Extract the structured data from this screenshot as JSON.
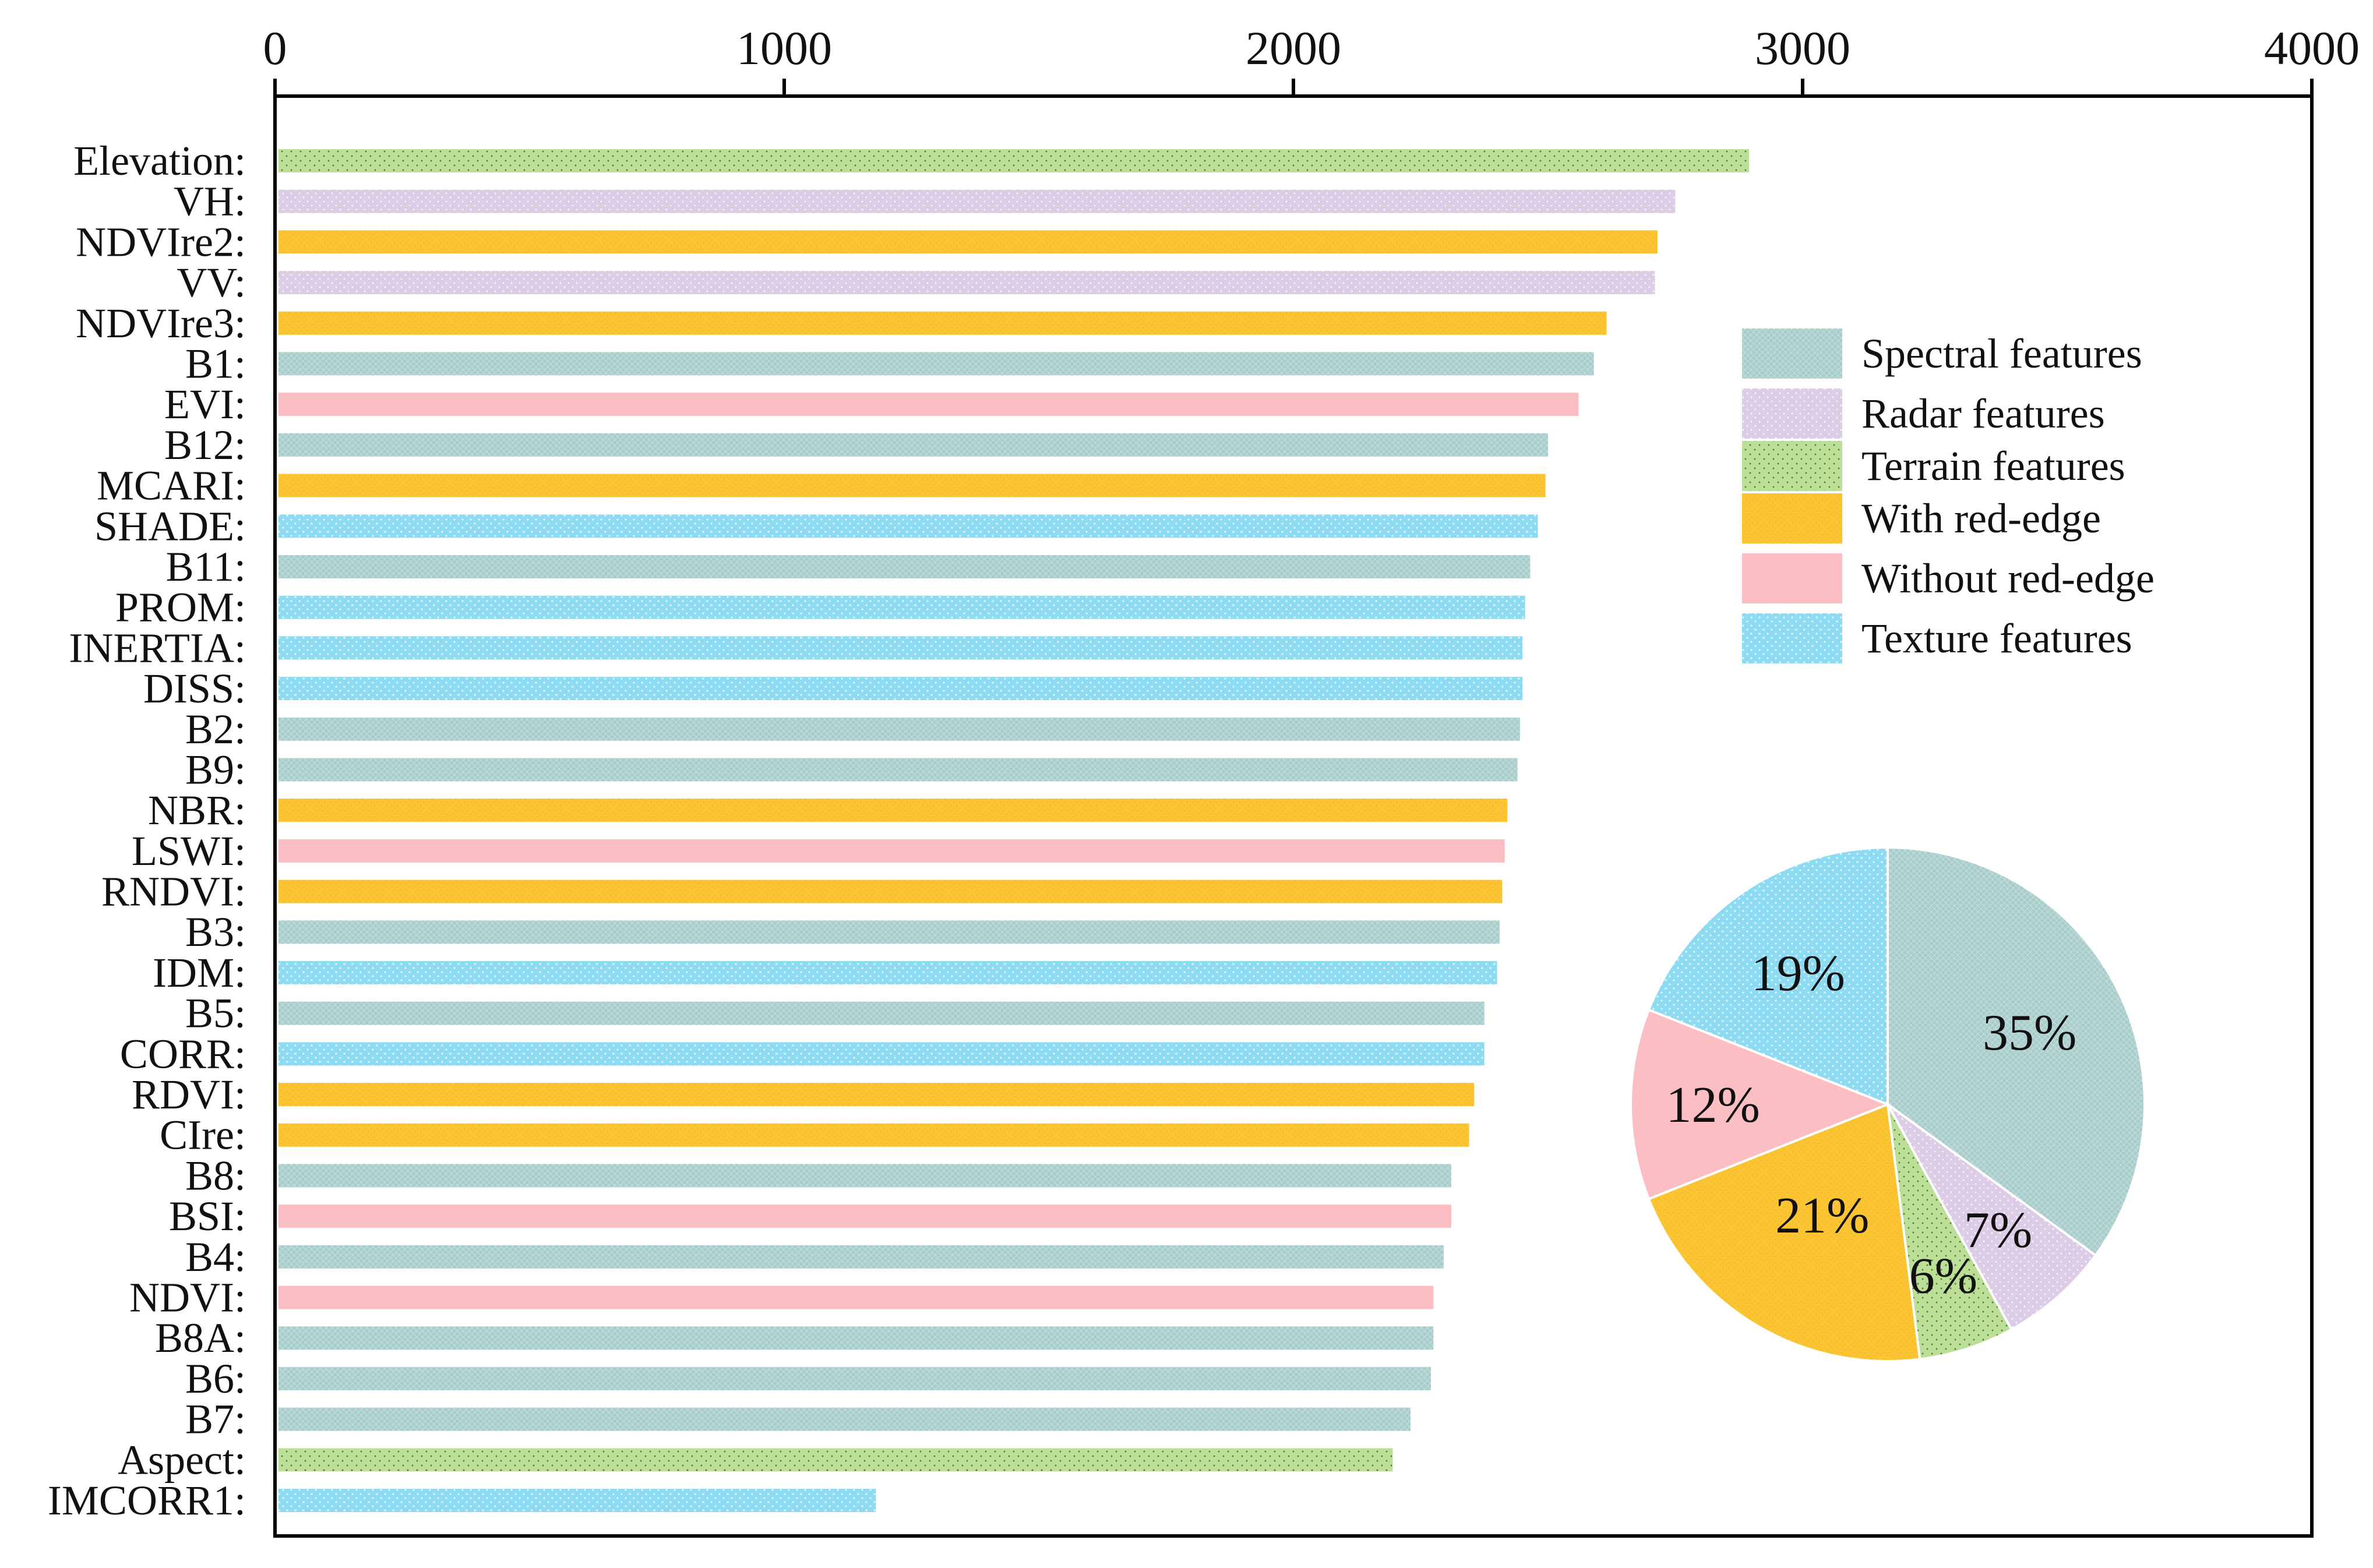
{
  "chart_data": [
    {
      "type": "bar",
      "orientation": "horizontal",
      "xaxis_position": "top",
      "xlim": [
        0,
        4000
      ],
      "xticks": [
        "0",
        "1000",
        "2000",
        "3000",
        "4000"
      ],
      "grid": false,
      "legend_position": "right",
      "categories": [
        "Elevation:",
        "VH:",
        "NDVIre2:",
        "VV:",
        "NDVIre3:",
        "B1:",
        "EVI:",
        "B12:",
        "MCARI:",
        "SHADE:",
        "B11:",
        "PROM:",
        "INERTIA:",
        "DISS:",
        "B2:",
        "B9:",
        "NBR:",
        "LSWI:",
        "RNDVI:",
        "B3:",
        "IDM:",
        "B5:",
        "CORR:",
        "RDVI:",
        "CIre:",
        "B8:",
        "BSI:",
        "B4:",
        "NDVI:",
        "B8A:",
        "B6:",
        "B7:",
        "Aspect:",
        "IMCORR1:"
      ],
      "values": [
        2895,
        2750,
        2715,
        2710,
        2615,
        2590,
        2560,
        2500,
        2495,
        2480,
        2465,
        2455,
        2450,
        2450,
        2445,
        2440,
        2420,
        2415,
        2410,
        2405,
        2400,
        2375,
        2375,
        2355,
        2345,
        2310,
        2310,
        2295,
        2275,
        2275,
        2270,
        2230,
        2195,
        1180
      ],
      "groups": [
        "Terrain features",
        "Radar features",
        "With red-edge",
        "Radar features",
        "With red-edge",
        "Spectral features",
        "Without red-edge",
        "Spectral features",
        "With red-edge",
        "Texture features",
        "Spectral features",
        "Texture features",
        "Texture features",
        "Texture features",
        "Spectral features",
        "Spectral features",
        "With red-edge",
        "Without red-edge",
        "With red-edge",
        "Spectral features",
        "Texture features",
        "Spectral features",
        "Texture features",
        "With red-edge",
        "With red-edge",
        "Spectral features",
        "Without red-edge",
        "Spectral features",
        "Without red-edge",
        "Spectral features",
        "Spectral features",
        "Spectral features",
        "Terrain features",
        "Texture features"
      ],
      "legend": [
        {
          "label": "Spectral features",
          "color": "#a8cdcb",
          "pattern": "crosshatch-dots"
        },
        {
          "label": "Radar features",
          "color": "#dccce6",
          "pattern": "white-dots"
        },
        {
          "label": "Terrain features",
          "color": "#bcdf98",
          "pattern": "dark-dots"
        },
        {
          "label": "With red-edge",
          "color": "#fbc432",
          "pattern": "fine-dots"
        },
        {
          "label": "Without red-edge",
          "color": "#fbbfc3",
          "pattern": "none"
        },
        {
          "label": "Texture features",
          "color": "#8ddbf3",
          "pattern": "white-dots"
        }
      ]
    },
    {
      "type": "pie",
      "slices": [
        {
          "category": "Spectral features",
          "value": 35,
          "label": "35%",
          "color": "#a8cdcb"
        },
        {
          "category": "Radar features",
          "value": 7,
          "label": "7%",
          "color": "#dccce6"
        },
        {
          "category": "Terrain features",
          "value": 6,
          "label": "6%",
          "color": "#bcdf98"
        },
        {
          "category": "With red-edge",
          "value": 21,
          "label": "21%",
          "color": "#fbc432"
        },
        {
          "category": "Without red-edge",
          "value": 12,
          "label": "12%",
          "color": "#fbbfc3"
        },
        {
          "category": "Texture features",
          "value": 19,
          "label": "19%",
          "color": "#8ddbf3"
        }
      ]
    }
  ]
}
